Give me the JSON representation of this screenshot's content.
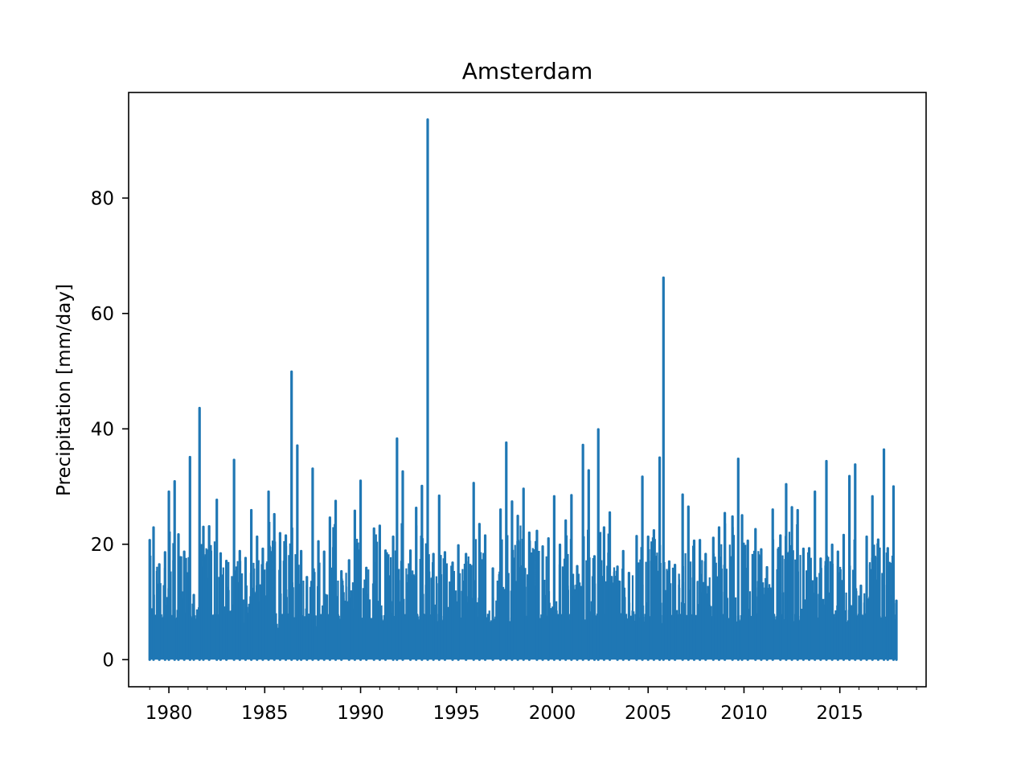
{
  "chart_data": {
    "type": "line",
    "title": "Amsterdam",
    "xlabel": "",
    "ylabel": "Precipitation [mm/day]",
    "xlim": [
      1977.9,
      2019.5
    ],
    "ylim": [
      -4.7,
      98.3
    ],
    "x_major_ticks": [
      1980,
      1985,
      1990,
      1995,
      2000,
      2005,
      2010,
      2015
    ],
    "x_tick_labels": [
      "1980",
      "1985",
      "1990",
      "1995",
      "2000",
      "2005",
      "2010",
      "2015"
    ],
    "x_minor_ticks": [
      1979,
      1980,
      1981,
      1982,
      1983,
      1984,
      1985,
      1986,
      1987,
      1988,
      1989,
      1990,
      1991,
      1992,
      1993,
      1994,
      1995,
      1996,
      1997,
      1998,
      1999,
      2000,
      2001,
      2002,
      2003,
      2004,
      2005,
      2006,
      2007,
      2008,
      2009,
      2010,
      2011,
      2012,
      2013,
      2014,
      2015,
      2016,
      2017,
      2018,
      2019
    ],
    "y_ticks": [
      0,
      20,
      40,
      60,
      80
    ],
    "y_tick_labels": [
      "0",
      "20",
      "40",
      "60",
      "80"
    ],
    "grid": false,
    "legend": "none",
    "date_range": [
      "1979-01-01",
      "2017-12-31"
    ],
    "series": [
      {
        "color": "#1f77b4",
        "x": [
          1979.0,
          1979.2,
          1979.5,
          1979.8,
          1980.0,
          1980.3,
          1980.5,
          1980.8,
          1981.1,
          1981.3,
          1981.6,
          1981.8,
          1982.1,
          1982.5,
          1982.7,
          1983.0,
          1983.4,
          1983.7,
          1984.0,
          1984.3,
          1984.6,
          1984.9,
          1985.2,
          1985.5,
          1985.8,
          1986.1,
          1986.4,
          1986.7,
          1986.9,
          1987.2,
          1987.5,
          1987.8,
          1988.1,
          1988.4,
          1988.7,
          1989.0,
          1989.4,
          1989.7,
          1990.0,
          1990.3,
          1990.7,
          1991.0,
          1991.3,
          1991.7,
          1991.9,
          1992.2,
          1992.6,
          1992.9,
          1993.2,
          1993.5,
          1993.8,
          1994.1,
          1994.4,
          1994.8,
          1995.1,
          1995.5,
          1995.9,
          1996.2,
          1996.5,
          1996.9,
          1997.3,
          1997.6,
          1997.9,
          1998.2,
          1998.5,
          1998.8,
          1999.2,
          1999.5,
          1999.8,
          2000.1,
          2000.4,
          2000.7,
          2001.0,
          2001.3,
          2001.6,
          2001.9,
          2002.2,
          2002.4,
          2002.7,
          2003.0,
          2003.4,
          2003.7,
          2004.0,
          2004.4,
          2004.7,
          2005.0,
          2005.3,
          2005.6,
          2005.8,
          2006.1,
          2006.4,
          2006.8,
          2007.1,
          2007.4,
          2007.7,
          2008.0,
          2008.4,
          2008.7,
          2009.0,
          2009.4,
          2009.7,
          2009.9,
          2010.2,
          2010.6,
          2010.9,
          2011.2,
          2011.5,
          2011.9,
          2012.2,
          2012.5,
          2012.8,
          2013.1,
          2013.4,
          2013.7,
          2014.0,
          2014.3,
          2014.6,
          2014.9,
          2015.2,
          2015.5,
          2015.8,
          2016.1,
          2016.4,
          2016.7,
          2017.0,
          2017.3,
          2017.5,
          2017.8,
          2017.95
        ],
        "y": [
          20.7,
          22.9,
          16.5,
          18.6,
          29.1,
          30.9,
          21.7,
          18.7,
          35.1,
          11.2,
          43.6,
          23.0,
          23.1,
          27.7,
          18.4,
          17.1,
          34.6,
          18.8,
          17.6,
          25.9,
          21.3,
          19.2,
          29.1,
          25.2,
          21.9,
          21.5,
          49.9,
          37.1,
          18.8,
          14.3,
          33.1,
          20.5,
          18.7,
          24.6,
          27.5,
          15.3,
          17.2,
          25.8,
          31.0,
          15.9,
          22.7,
          23.2,
          18.9,
          21.3,
          38.3,
          32.6,
          18.9,
          26.3,
          30.1,
          93.6,
          18.3,
          28.4,
          18.6,
          16.8,
          19.8,
          18.3,
          30.6,
          23.5,
          21.5,
          15.8,
          26.0,
          37.6,
          27.4,
          24.9,
          29.6,
          22.0,
          22.3,
          19.6,
          21.0,
          28.3,
          19.9,
          24.1,
          28.5,
          16.2,
          37.2,
          32.8,
          17.9,
          39.9,
          22.9,
          25.5,
          16.1,
          18.8,
          15.0,
          21.4,
          31.7,
          21.3,
          22.4,
          35.0,
          66.2,
          17.0,
          16.4,
          28.6,
          26.5,
          20.6,
          20.7,
          18.3,
          21.1,
          22.9,
          25.4,
          24.8,
          34.8,
          25.0,
          20.6,
          22.6,
          19.1,
          16.0,
          26.0,
          21.5,
          30.4,
          26.4,
          25.9,
          19.2,
          19.3,
          29.1,
          17.5,
          34.4,
          19.9,
          18.7,
          21.6,
          31.8,
          33.8,
          12.8,
          21.3,
          28.3,
          20.8,
          36.4,
          19.3,
          30.0,
          10.2
        ]
      }
    ]
  }
}
